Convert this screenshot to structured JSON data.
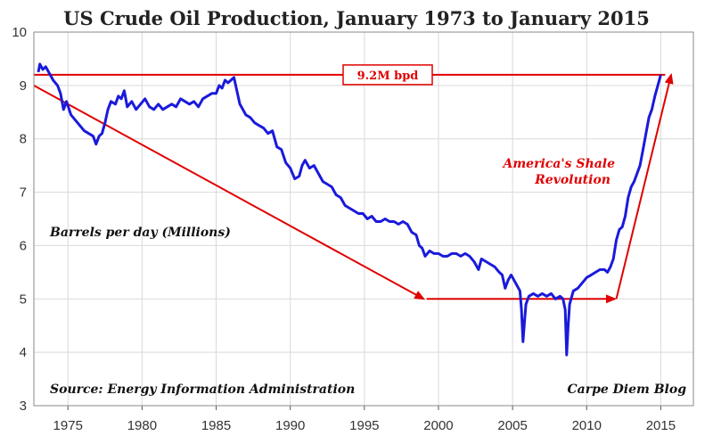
{
  "chart_data": {
    "type": "line",
    "title": "US Crude Oil Production, January 1973 to January 2015",
    "ylabel": "Barrels per day (Millions)",
    "xlabel": "",
    "xlim": [
      1972.7,
      2017.2
    ],
    "ylim": [
      3,
      10
    ],
    "x_ticks": [
      "1975",
      "1980",
      "1985",
      "1990",
      "1995",
      "2000",
      "2005",
      "2010",
      "2015"
    ],
    "y_ticks": [
      "3",
      "4",
      "5",
      "6",
      "7",
      "8",
      "9",
      "10"
    ],
    "grid": true,
    "series": [
      {
        "color": "#1a1adb",
        "points": [
          [
            1973.0,
            9.25
          ],
          [
            1973.1,
            9.4
          ],
          [
            1973.3,
            9.3
          ],
          [
            1973.5,
            9.35
          ],
          [
            1973.8,
            9.2
          ],
          [
            1974.0,
            9.1
          ],
          [
            1974.3,
            9.0
          ],
          [
            1974.5,
            8.85
          ],
          [
            1974.7,
            8.55
          ],
          [
            1974.9,
            8.7
          ],
          [
            1975.2,
            8.45
          ],
          [
            1975.5,
            8.35
          ],
          [
            1975.8,
            8.25
          ],
          [
            1976.1,
            8.15
          ],
          [
            1976.4,
            8.1
          ],
          [
            1976.7,
            8.05
          ],
          [
            1976.9,
            7.9
          ],
          [
            1977.1,
            8.05
          ],
          [
            1977.3,
            8.1
          ],
          [
            1977.5,
            8.3
          ],
          [
            1977.7,
            8.55
          ],
          [
            1977.9,
            8.7
          ],
          [
            1978.2,
            8.65
          ],
          [
            1978.4,
            8.8
          ],
          [
            1978.6,
            8.75
          ],
          [
            1978.8,
            8.9
          ],
          [
            1979.0,
            8.6
          ],
          [
            1979.3,
            8.7
          ],
          [
            1979.6,
            8.55
          ],
          [
            1979.9,
            8.65
          ],
          [
            1980.2,
            8.75
          ],
          [
            1980.5,
            8.6
          ],
          [
            1980.8,
            8.55
          ],
          [
            1981.1,
            8.65
          ],
          [
            1981.4,
            8.55
          ],
          [
            1981.7,
            8.6
          ],
          [
            1982.0,
            8.65
          ],
          [
            1982.3,
            8.6
          ],
          [
            1982.6,
            8.75
          ],
          [
            1982.9,
            8.7
          ],
          [
            1983.2,
            8.65
          ],
          [
            1983.5,
            8.7
          ],
          [
            1983.8,
            8.6
          ],
          [
            1984.1,
            8.75
          ],
          [
            1984.4,
            8.8
          ],
          [
            1984.7,
            8.85
          ],
          [
            1985.0,
            8.85
          ],
          [
            1985.2,
            9.0
          ],
          [
            1985.4,
            8.95
          ],
          [
            1985.6,
            9.1
          ],
          [
            1985.8,
            9.05
          ],
          [
            1986.0,
            9.1
          ],
          [
            1986.2,
            9.15
          ],
          [
            1986.4,
            8.9
          ],
          [
            1986.6,
            8.65
          ],
          [
            1986.8,
            8.55
          ],
          [
            1987.0,
            8.45
          ],
          [
            1987.3,
            8.4
          ],
          [
            1987.6,
            8.3
          ],
          [
            1987.9,
            8.25
          ],
          [
            1988.2,
            8.2
          ],
          [
            1988.5,
            8.1
          ],
          [
            1988.8,
            8.15
          ],
          [
            1989.1,
            7.85
          ],
          [
            1989.4,
            7.8
          ],
          [
            1989.7,
            7.55
          ],
          [
            1990.0,
            7.45
          ],
          [
            1990.3,
            7.25
          ],
          [
            1990.6,
            7.3
          ],
          [
            1990.8,
            7.5
          ],
          [
            1991.0,
            7.6
          ],
          [
            1991.3,
            7.45
          ],
          [
            1991.6,
            7.5
          ],
          [
            1991.9,
            7.35
          ],
          [
            1992.2,
            7.2
          ],
          [
            1992.5,
            7.15
          ],
          [
            1992.8,
            7.1
          ],
          [
            1993.1,
            6.95
          ],
          [
            1993.4,
            6.9
          ],
          [
            1993.7,
            6.75
          ],
          [
            1994.0,
            6.7
          ],
          [
            1994.3,
            6.65
          ],
          [
            1994.6,
            6.6
          ],
          [
            1994.9,
            6.6
          ],
          [
            1995.2,
            6.5
          ],
          [
            1995.5,
            6.55
          ],
          [
            1995.8,
            6.45
          ],
          [
            1996.1,
            6.45
          ],
          [
            1996.4,
            6.5
          ],
          [
            1996.7,
            6.45
          ],
          [
            1997.0,
            6.45
          ],
          [
            1997.3,
            6.4
          ],
          [
            1997.6,
            6.45
          ],
          [
            1997.9,
            6.4
          ],
          [
            1998.2,
            6.25
          ],
          [
            1998.5,
            6.2
          ],
          [
            1998.7,
            6.0
          ],
          [
            1998.9,
            5.95
          ],
          [
            1999.1,
            5.8
          ],
          [
            1999.4,
            5.9
          ],
          [
            1999.7,
            5.85
          ],
          [
            2000.0,
            5.85
          ],
          [
            2000.3,
            5.8
          ],
          [
            2000.6,
            5.8
          ],
          [
            2000.9,
            5.85
          ],
          [
            2001.2,
            5.85
          ],
          [
            2001.5,
            5.8
          ],
          [
            2001.8,
            5.85
          ],
          [
            2002.1,
            5.8
          ],
          [
            2002.4,
            5.7
          ],
          [
            2002.7,
            5.55
          ],
          [
            2002.9,
            5.75
          ],
          [
            2003.2,
            5.7
          ],
          [
            2003.5,
            5.65
          ],
          [
            2003.8,
            5.6
          ],
          [
            2004.1,
            5.5
          ],
          [
            2004.3,
            5.45
          ],
          [
            2004.5,
            5.2
          ],
          [
            2004.7,
            5.35
          ],
          [
            2004.9,
            5.45
          ],
          [
            2005.1,
            5.35
          ],
          [
            2005.3,
            5.25
          ],
          [
            2005.5,
            5.15
          ],
          [
            2005.6,
            4.8
          ],
          [
            2005.7,
            4.2
          ],
          [
            2005.8,
            4.55
          ],
          [
            2005.9,
            4.9
          ],
          [
            2006.1,
            5.05
          ],
          [
            2006.4,
            5.1
          ],
          [
            2006.7,
            5.05
          ],
          [
            2007.0,
            5.1
          ],
          [
            2007.3,
            5.05
          ],
          [
            2007.6,
            5.1
          ],
          [
            2007.9,
            5.0
          ],
          [
            2008.2,
            5.05
          ],
          [
            2008.4,
            5.0
          ],
          [
            2008.55,
            4.8
          ],
          [
            2008.65,
            3.95
          ],
          [
            2008.75,
            4.5
          ],
          [
            2008.85,
            4.9
          ],
          [
            2009.1,
            5.15
          ],
          [
            2009.4,
            5.2
          ],
          [
            2009.7,
            5.3
          ],
          [
            2010.0,
            5.4
          ],
          [
            2010.3,
            5.45
          ],
          [
            2010.6,
            5.5
          ],
          [
            2010.9,
            5.55
          ],
          [
            2011.2,
            5.55
          ],
          [
            2011.4,
            5.5
          ],
          [
            2011.6,
            5.6
          ],
          [
            2011.8,
            5.75
          ],
          [
            2012.0,
            6.1
          ],
          [
            2012.2,
            6.3
          ],
          [
            2012.4,
            6.35
          ],
          [
            2012.6,
            6.55
          ],
          [
            2012.8,
            6.9
          ],
          [
            2013.0,
            7.1
          ],
          [
            2013.2,
            7.2
          ],
          [
            2013.4,
            7.35
          ],
          [
            2013.6,
            7.5
          ],
          [
            2013.8,
            7.8
          ],
          [
            2014.0,
            8.1
          ],
          [
            2014.2,
            8.4
          ],
          [
            2014.4,
            8.55
          ],
          [
            2014.6,
            8.8
          ],
          [
            2014.8,
            9.0
          ],
          [
            2015.0,
            9.2
          ]
        ]
      }
    ],
    "reference_line": {
      "y": 9.2,
      "x_start": 1972.7,
      "x_end": 2015.3,
      "label": "9.2M bpd",
      "color": "#e00000"
    },
    "arrows": [
      {
        "from": [
          1972.7,
          9.0
        ],
        "to": [
          1999.0,
          5.0
        ],
        "color": "#e00000"
      },
      {
        "from": [
          1999.2,
          5.0
        ],
        "to": [
          2011.9,
          5.0
        ],
        "color": "#e00000"
      },
      {
        "from": [
          2012.0,
          5.0
        ],
        "to": [
          2015.7,
          9.2
        ],
        "color": "#e00000"
      }
    ],
    "annotations": [
      {
        "text_lines": [
          "America's Shale",
          "Revolution"
        ],
        "color": "#e00000"
      },
      {
        "text": "Barrels per day (Millions)",
        "color": "#111111"
      },
      {
        "text": "Source: Energy Information Administration",
        "color": "#111111"
      },
      {
        "text": "Carpe Diem Blog",
        "color": "#111111"
      }
    ]
  }
}
